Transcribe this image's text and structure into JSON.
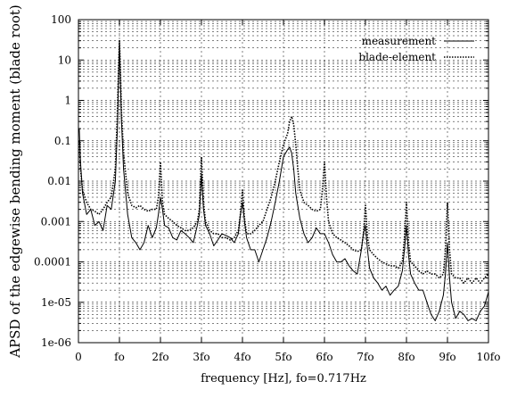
{
  "chart_data": {
    "type": "line",
    "title": "",
    "xlabel": "frequency [Hz],  fo=0.717Hz",
    "ylabel": "APSD of the edgewise bending moment (blade root)",
    "x_unit": "fo",
    "xlim": [
      0,
      10
    ],
    "ylim": [
      1e-06,
      100
    ],
    "y_scale": "log",
    "grid": true,
    "legend_position": "top-right",
    "x_ticks": [
      {
        "value": 0,
        "label": "0"
      },
      {
        "value": 1,
        "label": "fo"
      },
      {
        "value": 2,
        "label": "2fo"
      },
      {
        "value": 3,
        "label": "3fo"
      },
      {
        "value": 4,
        "label": "4fo"
      },
      {
        "value": 5,
        "label": "5fo"
      },
      {
        "value": 6,
        "label": "6fo"
      },
      {
        "value": 7,
        "label": "7fo"
      },
      {
        "value": 8,
        "label": "8fo"
      },
      {
        "value": 9,
        "label": "9fo"
      },
      {
        "value": 10,
        "label": "10fo"
      }
    ],
    "y_ticks": [
      {
        "value": 100,
        "label": "100"
      },
      {
        "value": 10,
        "label": "10"
      },
      {
        "value": 1,
        "label": "1"
      },
      {
        "value": 0.1,
        "label": "0.1"
      },
      {
        "value": 0.01,
        "label": "0.01"
      },
      {
        "value": 0.001,
        "label": "0.001"
      },
      {
        "value": 0.0001,
        "label": "0.0001"
      },
      {
        "value": 1e-05,
        "label": "1e-05"
      },
      {
        "value": 1e-06,
        "label": "1e-06"
      }
    ],
    "series": [
      {
        "name": "measurement",
        "style": "solid",
        "color": "#000000",
        "x": [
          0.02,
          0.05,
          0.1,
          0.2,
          0.3,
          0.4,
          0.5,
          0.6,
          0.7,
          0.8,
          0.9,
          0.95,
          0.98,
          1.0,
          1.02,
          1.05,
          1.1,
          1.2,
          1.3,
          1.4,
          1.5,
          1.6,
          1.7,
          1.8,
          1.9,
          1.95,
          2.0,
          2.05,
          2.1,
          2.2,
          2.3,
          2.4,
          2.5,
          2.6,
          2.7,
          2.8,
          2.9,
          2.95,
          3.0,
          3.05,
          3.1,
          3.2,
          3.3,
          3.4,
          3.5,
          3.6,
          3.7,
          3.8,
          3.9,
          3.95,
          4.0,
          4.05,
          4.1,
          4.2,
          4.3,
          4.4,
          4.5,
          4.6,
          4.7,
          4.8,
          4.9,
          5.0,
          5.1,
          5.15,
          5.2,
          5.25,
          5.3,
          5.4,
          5.5,
          5.6,
          5.7,
          5.8,
          5.9,
          6.0,
          6.1,
          6.2,
          6.3,
          6.4,
          6.5,
          6.6,
          6.7,
          6.8,
          6.9,
          6.95,
          7.0,
          7.05,
          7.1,
          7.2,
          7.3,
          7.4,
          7.5,
          7.6,
          7.7,
          7.8,
          7.9,
          7.95,
          8.0,
          8.05,
          8.1,
          8.2,
          8.3,
          8.4,
          8.5,
          8.6,
          8.7,
          8.8,
          8.9,
          8.95,
          9.0,
          9.05,
          9.1,
          9.2,
          9.3,
          9.4,
          9.5,
          9.6,
          9.7,
          9.8,
          9.9,
          10.0
        ],
        "y": [
          0.2,
          0.03,
          0.005,
          0.0015,
          0.002,
          0.0008,
          0.001,
          0.0006,
          0.0025,
          0.002,
          0.01,
          0.2,
          5,
          25,
          5,
          0.3,
          0.02,
          0.0015,
          0.0004,
          0.0003,
          0.0002,
          0.0003,
          0.0008,
          0.0004,
          0.0007,
          0.0015,
          0.004,
          0.002,
          0.0008,
          0.0007,
          0.0004,
          0.00035,
          0.0006,
          0.0005,
          0.0004,
          0.0003,
          0.0008,
          0.0015,
          0.015,
          0.002,
          0.0008,
          0.0005,
          0.00025,
          0.00035,
          0.0005,
          0.00045,
          0.0004,
          0.0003,
          0.0005,
          0.0015,
          0.003,
          0.001,
          0.0004,
          0.0002,
          0.0002,
          0.0001,
          0.0002,
          0.0004,
          0.001,
          0.003,
          0.01,
          0.04,
          0.06,
          0.07,
          0.05,
          0.02,
          0.005,
          0.0012,
          0.0005,
          0.0003,
          0.0004,
          0.0007,
          0.0005,
          0.0005,
          0.0003,
          0.00015,
          0.0001,
          0.0001,
          0.00012,
          8e-05,
          6e-05,
          5e-05,
          0.0002,
          0.0005,
          0.0008,
          0.0002,
          7e-05,
          4e-05,
          3e-05,
          2e-05,
          2.5e-05,
          1.5e-05,
          2e-05,
          2.5e-05,
          6e-05,
          0.0002,
          0.0008,
          0.00015,
          5e-05,
          3e-05,
          2e-05,
          2e-05,
          1e-05,
          5e-06,
          3.5e-06,
          6e-06,
          1.5e-05,
          5e-05,
          0.0003,
          4e-05,
          1e-05,
          4e-06,
          6e-06,
          5e-06,
          3.5e-06,
          4e-06,
          3.5e-06,
          6e-06,
          8e-06,
          1.8e-05
        ]
      },
      {
        "name": "blade-element",
        "style": "dotted",
        "color": "#000000",
        "x": [
          0.02,
          0.05,
          0.1,
          0.2,
          0.3,
          0.4,
          0.5,
          0.6,
          0.7,
          0.8,
          0.9,
          0.95,
          0.98,
          1.0,
          1.02,
          1.05,
          1.1,
          1.2,
          1.3,
          1.4,
          1.5,
          1.6,
          1.7,
          1.8,
          1.9,
          1.95,
          2.0,
          2.05,
          2.1,
          2.2,
          2.3,
          2.4,
          2.5,
          2.6,
          2.7,
          2.8,
          2.9,
          2.95,
          3.0,
          3.05,
          3.1,
          3.2,
          3.3,
          3.4,
          3.5,
          3.6,
          3.7,
          3.8,
          3.9,
          3.95,
          4.0,
          4.05,
          4.1,
          4.2,
          4.3,
          4.4,
          4.5,
          4.6,
          4.7,
          4.8,
          4.9,
          5.0,
          5.1,
          5.15,
          5.2,
          5.25,
          5.3,
          5.35,
          5.4,
          5.5,
          5.6,
          5.7,
          5.8,
          5.9,
          5.95,
          6.0,
          6.05,
          6.1,
          6.2,
          6.3,
          6.4,
          6.5,
          6.6,
          6.7,
          6.8,
          6.9,
          6.95,
          7.0,
          7.05,
          7.1,
          7.2,
          7.3,
          7.4,
          7.5,
          7.6,
          7.7,
          7.8,
          7.9,
          7.95,
          8.0,
          8.05,
          8.1,
          8.2,
          8.3,
          8.4,
          8.5,
          8.6,
          8.7,
          8.8,
          8.9,
          8.95,
          9.0,
          9.05,
          9.1,
          9.2,
          9.3,
          9.4,
          9.5,
          9.6,
          9.7,
          9.8,
          9.9,
          10.0
        ],
        "y": [
          0.1,
          0.02,
          0.006,
          0.003,
          0.002,
          0.0018,
          0.0015,
          0.002,
          0.003,
          0.004,
          0.02,
          0.5,
          8,
          30,
          8,
          0.5,
          0.05,
          0.005,
          0.0025,
          0.0022,
          0.0025,
          0.002,
          0.0018,
          0.002,
          0.002,
          0.004,
          0.03,
          0.003,
          0.0015,
          0.0012,
          0.001,
          0.0008,
          0.0007,
          0.0006,
          0.0006,
          0.0007,
          0.001,
          0.002,
          0.04,
          0.003,
          0.001,
          0.0006,
          0.0005,
          0.0005,
          0.0004,
          0.0004,
          0.00035,
          0.0004,
          0.0006,
          0.0015,
          0.006,
          0.0012,
          0.0005,
          0.0005,
          0.0006,
          0.0008,
          0.001,
          0.002,
          0.004,
          0.01,
          0.03,
          0.08,
          0.15,
          0.3,
          0.4,
          0.25,
          0.08,
          0.02,
          0.006,
          0.003,
          0.0025,
          0.002,
          0.0018,
          0.002,
          0.006,
          0.03,
          0.004,
          0.001,
          0.0005,
          0.0004,
          0.00035,
          0.0003,
          0.00025,
          0.0002,
          0.00018,
          0.0002,
          0.0005,
          0.0025,
          0.0004,
          0.0002,
          0.00015,
          0.00012,
          0.0001,
          9e-05,
          8e-05,
          8e-05,
          7e-05,
          0.0001,
          0.0004,
          0.003,
          0.0003,
          0.0001,
          8e-05,
          6e-05,
          5e-05,
          6e-05,
          5e-05,
          5e-05,
          4e-05,
          5e-05,
          0.0002,
          0.003,
          0.0002,
          5e-05,
          4e-05,
          4e-05,
          3e-05,
          4e-05,
          3e-05,
          4e-05,
          3e-05,
          4e-05,
          5e-05
        ]
      }
    ]
  }
}
